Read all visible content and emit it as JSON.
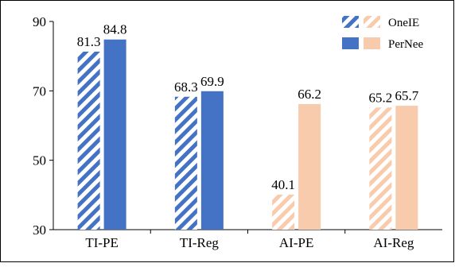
{
  "chart_data": {
    "type": "bar",
    "title": "",
    "xlabel": "",
    "ylabel": "",
    "ylim": [
      30,
      90
    ],
    "yticks": [
      30,
      50,
      70,
      90
    ],
    "grid": false,
    "legend_position": "top-right",
    "categories": [
      "TI-PE",
      "TI-Reg",
      "AI-PE",
      "AI-Reg"
    ],
    "series": [
      {
        "name": "OneIE",
        "pattern": "diagonal-hatch",
        "values": [
          81.3,
          68.3,
          40.1,
          65.2
        ],
        "labels": [
          "81.3",
          "68.3",
          "40.1",
          "65.2"
        ]
      },
      {
        "name": "PerNee",
        "pattern": "solid",
        "values": [
          84.8,
          69.9,
          66.2,
          65.7
        ],
        "labels": [
          "84.8",
          "69.9",
          "66.2",
          "65.7"
        ]
      }
    ],
    "category_colors": [
      "#4472C4",
      "#4472C4",
      "#F8CBAD",
      "#F8CBAD"
    ],
    "legend_colors": [
      "#4472C4",
      "#F8CBAD"
    ]
  }
}
